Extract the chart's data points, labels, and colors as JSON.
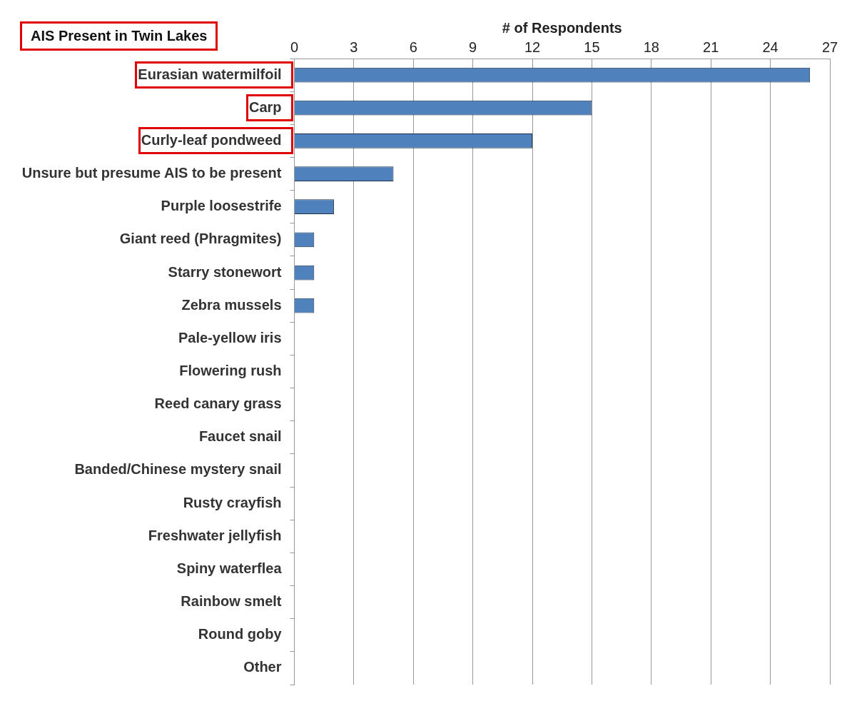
{
  "chart_data": {
    "type": "bar",
    "orientation": "horizontal",
    "title": "AIS Present in Twin Lakes",
    "xlabel": "# of Respondents",
    "categories": [
      "Eurasian watermilfoil",
      "Carp",
      "Curly-leaf pondweed",
      "Unsure but presume AIS to be present",
      "Purple loosestrife",
      "Giant reed (Phragmites)",
      "Starry stonewort",
      "Zebra mussels",
      "Pale-yellow iris",
      "Flowering rush",
      "Reed canary grass",
      "Faucet snail",
      "Banded/Chinese mystery snail",
      "Rusty crayfish",
      "Freshwater jellyfish",
      "Spiny waterflea",
      "Rainbow smelt",
      "Round goby",
      "Other"
    ],
    "values": [
      26,
      15,
      12,
      5,
      2,
      1,
      1,
      1,
      0,
      0,
      0,
      0,
      0,
      0,
      0,
      0,
      0,
      0,
      0
    ],
    "color": "#4f81bd",
    "xlim": [
      0,
      27
    ],
    "xticks": [
      0,
      3,
      6,
      9,
      12,
      15,
      18,
      21,
      24,
      27
    ],
    "grid": "x"
  }
}
